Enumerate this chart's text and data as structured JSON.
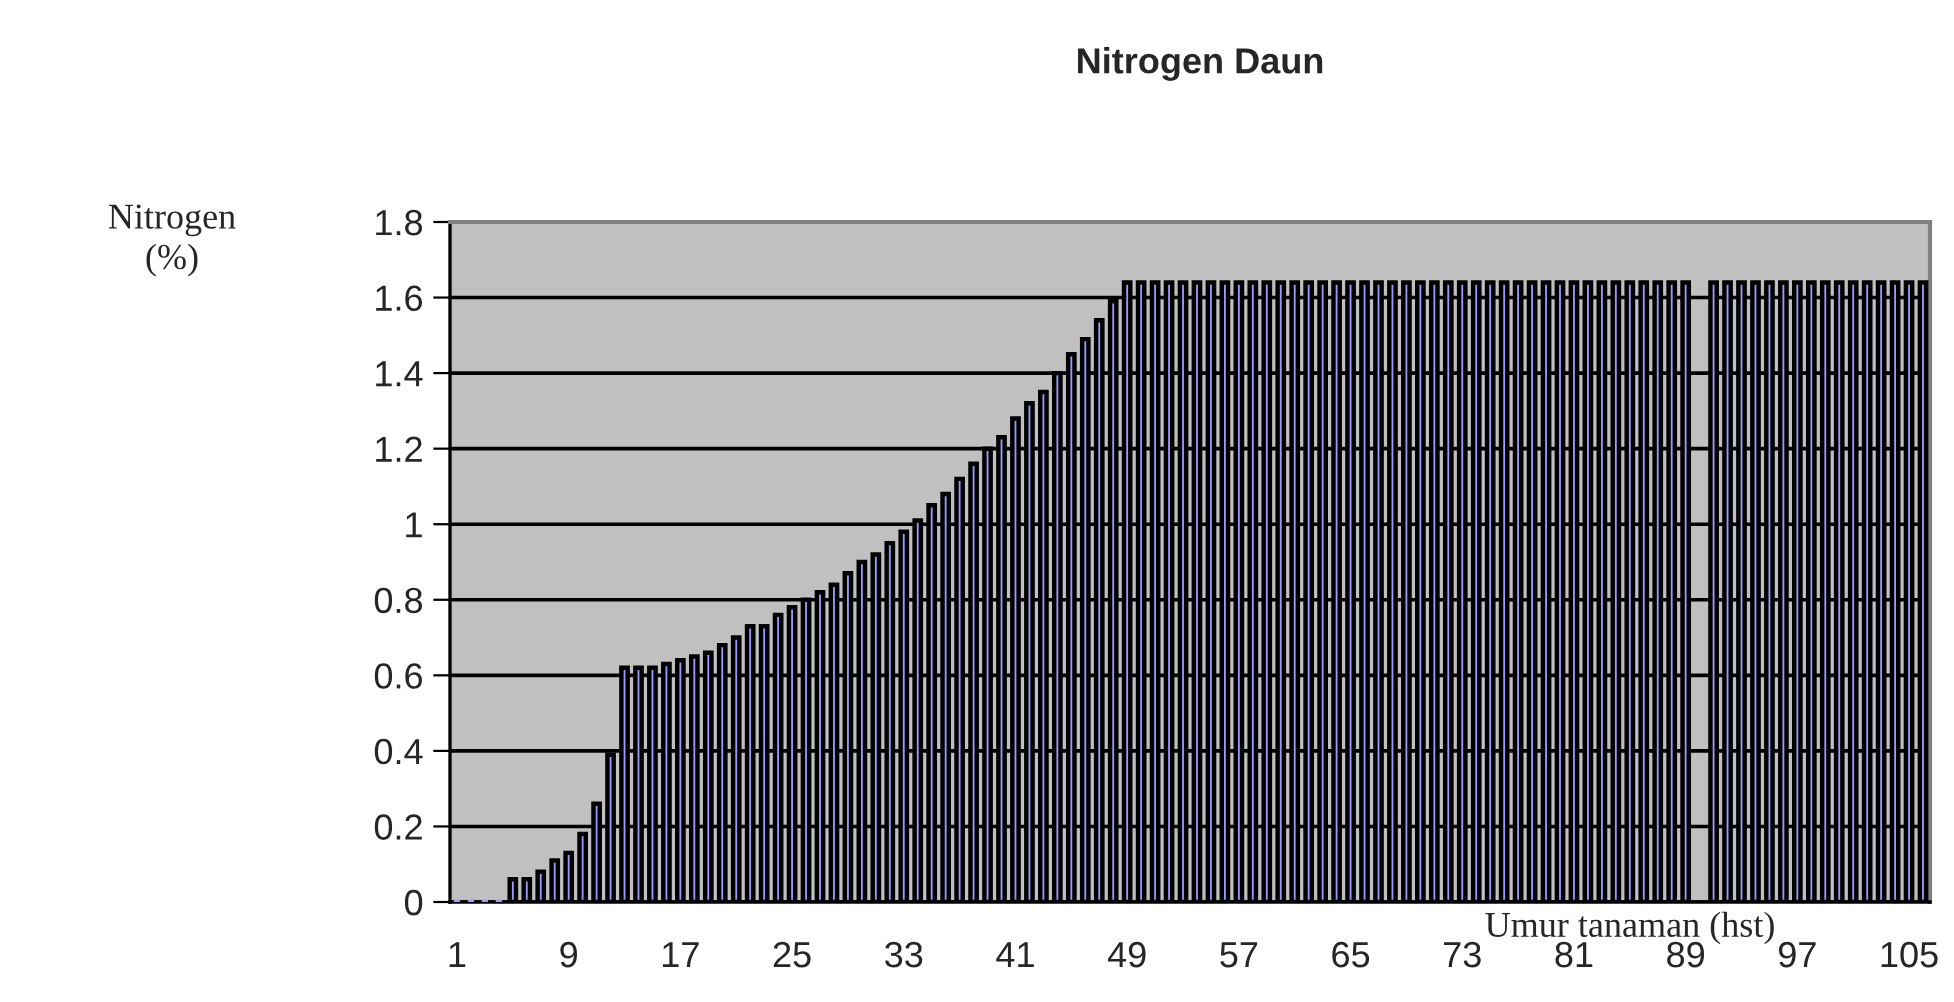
{
  "chart_data": {
    "type": "bar",
    "title": "Nitrogen Daun",
    "xlabel": "Umur tanaman (hst)",
    "ylabel": "Nitrogen\n(%)",
    "categories": [
      "1",
      null,
      null,
      null,
      null,
      null,
      null,
      null,
      "9",
      null,
      null,
      null,
      null,
      null,
      null,
      null,
      "17",
      null,
      null,
      null,
      null,
      null,
      null,
      null,
      "25",
      null,
      null,
      null,
      null,
      null,
      null,
      null,
      "33",
      null,
      null,
      null,
      null,
      null,
      null,
      null,
      "41",
      null,
      null,
      null,
      null,
      null,
      null,
      null,
      "49",
      null,
      null,
      null,
      null,
      null,
      null,
      null,
      "57",
      null,
      null,
      null,
      null,
      null,
      null,
      null,
      "65",
      null,
      null,
      null,
      null,
      null,
      null,
      null,
      "73",
      null,
      null,
      null,
      null,
      null,
      null,
      null,
      "81",
      null,
      null,
      null,
      null,
      null,
      null,
      null,
      "89",
      null,
      null,
      null,
      null,
      null,
      null,
      null,
      "97",
      null,
      null,
      null,
      null,
      null,
      null,
      null,
      "105",
      null
    ],
    "values": [
      0,
      0,
      0,
      0,
      0.06,
      0.06,
      0.08,
      0.11,
      0.13,
      0.18,
      0.26,
      0.39,
      0.62,
      0.62,
      0.62,
      0.63,
      0.64,
      0.65,
      0.66,
      0.68,
      0.7,
      0.73,
      0.73,
      0.76,
      0.78,
      0.8,
      0.82,
      0.84,
      0.87,
      0.9,
      0.92,
      0.95,
      0.98,
      1.01,
      1.05,
      1.08,
      1.12,
      1.16,
      1.2,
      1.23,
      1.28,
      1.32,
      1.35,
      1.4,
      1.45,
      1.49,
      1.54,
      1.59,
      1.64,
      1.64,
      1.64,
      1.64,
      1.64,
      1.64,
      1.64,
      1.64,
      1.64,
      1.64,
      1.64,
      1.64,
      1.64,
      1.64,
      1.64,
      1.64,
      1.64,
      1.64,
      1.64,
      1.64,
      1.64,
      1.64,
      1.64,
      1.64,
      1.64,
      1.64,
      1.64,
      1.64,
      1.64,
      1.64,
      1.64,
      1.64,
      1.64,
      1.64,
      1.64,
      1.64,
      1.64,
      1.64,
      1.64,
      1.64,
      1.64,
      null,
      1.64,
      1.64,
      1.64,
      1.64,
      1.64,
      1.64,
      1.64,
      1.64,
      1.64,
      1.64,
      1.64,
      1.64,
      1.64,
      1.64,
      1.64,
      1.64
    ],
    "color": "#9999ff",
    "ylim": [
      0,
      1.8
    ],
    "yticks": [
      0,
      0.2,
      0.4,
      0.6,
      0.8,
      1,
      1.2,
      1.4,
      1.6,
      1.8
    ],
    "grid": "y"
  }
}
